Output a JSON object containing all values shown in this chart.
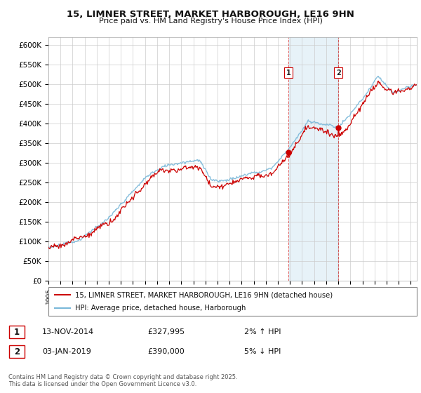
{
  "title_line1": "15, LIMNER STREET, MARKET HARBOROUGH, LE16 9HN",
  "title_line2": "Price paid vs. HM Land Registry's House Price Index (HPI)",
  "ylim": [
    0,
    620000
  ],
  "yticks": [
    0,
    50000,
    100000,
    150000,
    200000,
    250000,
    300000,
    350000,
    400000,
    450000,
    500000,
    550000,
    600000
  ],
  "ytick_labels": [
    "£0",
    "£50K",
    "£100K",
    "£150K",
    "£200K",
    "£250K",
    "£300K",
    "£350K",
    "£400K",
    "£450K",
    "£500K",
    "£550K",
    "£600K"
  ],
  "legend1": "15, LIMNER STREET, MARKET HARBOROUGH, LE16 9HN (detached house)",
  "legend2": "HPI: Average price, detached house, Harborough",
  "sale1_label": "1",
  "sale1_date": "13-NOV-2014",
  "sale1_price": "£327,995",
  "sale1_change": "2% ↑ HPI",
  "sale2_label": "2",
  "sale2_date": "03-JAN-2019",
  "sale2_price": "£390,000",
  "sale2_change": "5% ↓ HPI",
  "footnote_line1": "Contains HM Land Registry data © Crown copyright and database right 2025.",
  "footnote_line2": "This data is licensed under the Open Government Licence v3.0.",
  "hpi_color": "#7ab8d9",
  "price_color": "#cc0000",
  "sale1_x": 2014.87,
  "sale2_x": 2019.01,
  "xlim_left": 1995.0,
  "xlim_right": 2025.5
}
